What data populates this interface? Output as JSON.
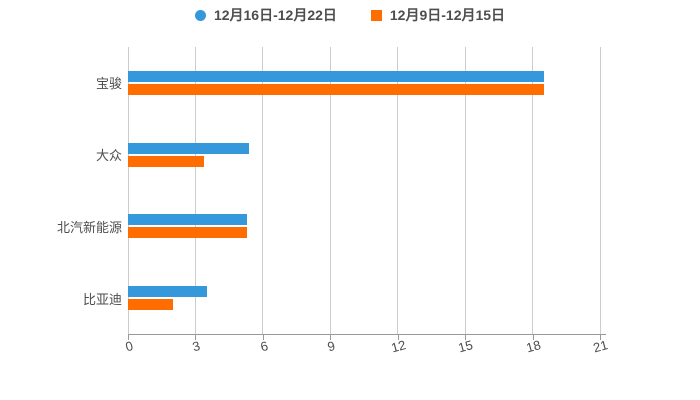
{
  "legend": {
    "items": [
      {
        "label": "12月16日-12月22日",
        "color": "#3498db",
        "shape": "circle"
      },
      {
        "label": "12月9日-12月15日",
        "color": "#ff6d00",
        "shape": "square"
      }
    ]
  },
  "chart_data": {
    "type": "bar",
    "orientation": "horizontal",
    "title": "",
    "xlabel": "",
    "ylabel": "",
    "categories": [
      "宝骏",
      "大众",
      "北汽新能源",
      "比亚迪"
    ],
    "series": [
      {
        "name": "12月16日-12月22日",
        "color": "#3498db",
        "values": [
          18.5,
          5.4,
          5.3,
          3.5
        ]
      },
      {
        "name": "12月9日-12月15日",
        "color": "#ff6d00",
        "values": [
          18.5,
          3.4,
          5.3,
          2.0
        ]
      }
    ],
    "xlim": [
      0,
      21
    ],
    "x_ticks": [
      0,
      3,
      6,
      9,
      12,
      15,
      18,
      21
    ],
    "grid": true,
    "legend_position": "top"
  },
  "colors": {
    "background": "#ffffff",
    "gridline": "#cccccc",
    "axis_line": "#999999",
    "text": "#4d4d4d"
  }
}
